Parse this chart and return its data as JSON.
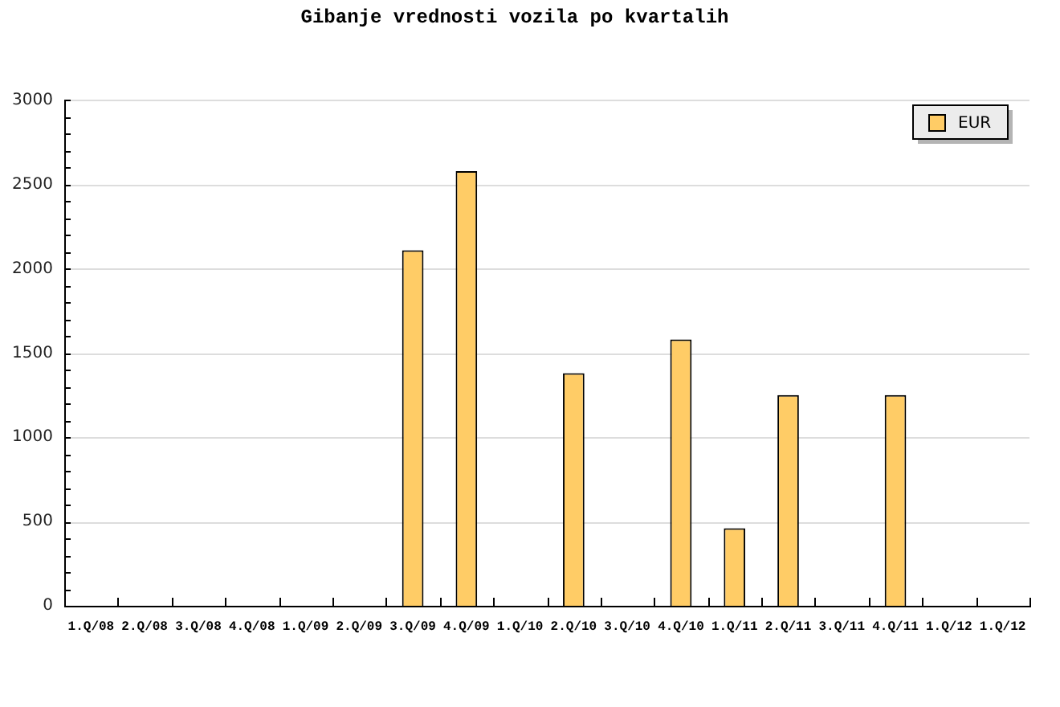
{
  "chart_data": {
    "type": "bar",
    "title": "Gibanje vrednosti vozila po kvartalih",
    "categories": [
      "1.Q/08",
      "2.Q/08",
      "3.Q/08",
      "4.Q/08",
      "1.Q/09",
      "2.Q/09",
      "3.Q/09",
      "4.Q/09",
      "1.Q/10",
      "2.Q/10",
      "3.Q/10",
      "4.Q/10",
      "1.Q/11",
      "2.Q/11",
      "3.Q/11",
      "4.Q/11",
      "1.Q/12",
      "1.Q/12"
    ],
    "series": [
      {
        "name": "EUR",
        "color": "#ffcc66",
        "values": [
          null,
          null,
          null,
          null,
          null,
          null,
          2110,
          2580,
          null,
          1380,
          null,
          1580,
          460,
          1250,
          null,
          1250,
          null,
          null
        ]
      }
    ],
    "ylim": [
      0,
      3000
    ],
    "yticks": [
      0,
      {
        "value": 100,
        "label": null
      },
      {
        "value": 200,
        "label": null
      },
      {
        "value": 300,
        "label": null
      },
      {
        "value": 400,
        "label": null
      },
      500,
      {
        "value": 600,
        "label": null
      },
      {
        "value": 700,
        "label": null
      },
      {
        "value": 800,
        "label": null
      },
      {
        "value": 900,
        "label": null
      },
      1000,
      {
        "value": 1100,
        "label": null
      },
      {
        "value": 1200,
        "label": null
      },
      {
        "value": 1300,
        "label": null
      },
      {
        "value": 1400,
        "label": null
      },
      1500,
      {
        "value": 1600,
        "label": null
      },
      {
        "value": 1700,
        "label": null
      },
      {
        "value": 1800,
        "label": null
      },
      {
        "value": 1900,
        "label": null
      },
      2000,
      {
        "value": 2100,
        "label": null
      },
      {
        "value": 2200,
        "label": null
      },
      {
        "value": 2300,
        "label": null
      },
      {
        "value": 2400,
        "label": null
      },
      2500,
      {
        "value": 2600,
        "label": null
      },
      {
        "value": 2700,
        "label": null
      },
      {
        "value": 2800,
        "label": null
      },
      {
        "value": 2900,
        "label": null
      },
      3000
    ],
    "grid": "y",
    "legend": "top right"
  }
}
